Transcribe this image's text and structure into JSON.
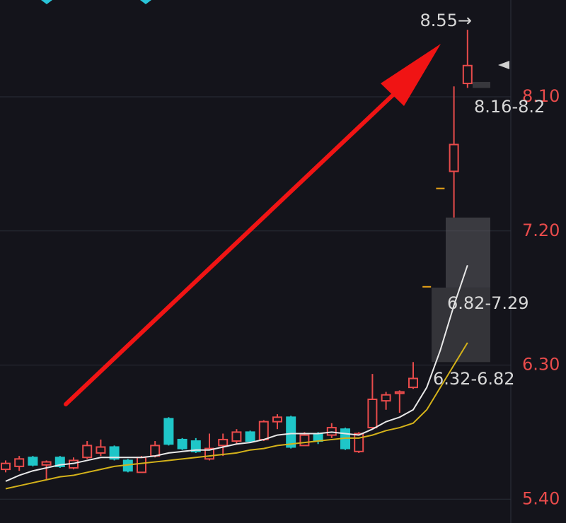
{
  "chart_data": {
    "type": "candlestick",
    "ylim": [
      5.24,
      8.75
    ],
    "yticks": [
      {
        "value": 5.4,
        "label": "5.40"
      },
      {
        "value": 6.3,
        "label": "6.30"
      },
      {
        "value": 7.2,
        "label": "7.20"
      },
      {
        "value": 8.1,
        "label": "8.10"
      }
    ],
    "grid": true,
    "up_color": "#e84b4b",
    "down_color": "#1fc6c8",
    "flat_color": "#e8a317",
    "candles": {
      "open": [
        5.6,
        5.62,
        5.68,
        5.63,
        5.68,
        5.61,
        5.68,
        5.71,
        5.75,
        5.66,
        5.58,
        5.69,
        5.94,
        5.8,
        5.79,
        5.67,
        5.76,
        5.79,
        5.85,
        5.8,
        5.92,
        5.95,
        5.76,
        5.84,
        5.83,
        5.87,
        5.72,
        5.88,
        6.06,
        6.11,
        6.15,
        6.83,
        7.49,
        7.6,
        8.19
      ],
      "close": [
        5.64,
        5.67,
        5.63,
        5.65,
        5.62,
        5.66,
        5.76,
        5.75,
        5.67,
        5.59,
        5.68,
        5.76,
        5.77,
        5.74,
        5.72,
        5.74,
        5.8,
        5.85,
        5.79,
        5.92,
        5.95,
        5.75,
        5.83,
        5.79,
        5.88,
        5.74,
        5.84,
        6.07,
        6.1,
        6.12,
        6.21,
        6.83,
        7.49,
        7.78,
        8.31
      ],
      "high": [
        5.66,
        5.69,
        5.69,
        5.66,
        5.69,
        5.68,
        5.79,
        5.8,
        5.76,
        5.67,
        5.69,
        5.79,
        5.95,
        5.81,
        5.81,
        5.84,
        5.84,
        5.87,
        5.86,
        5.93,
        5.97,
        5.96,
        5.85,
        5.85,
        5.91,
        5.88,
        5.85,
        6.24,
        6.12,
        6.13,
        6.32,
        6.83,
        7.49,
        8.17,
        8.55
      ],
      "low": [
        5.58,
        5.59,
        5.62,
        5.53,
        5.61,
        5.6,
        5.67,
        5.69,
        5.66,
        5.58,
        5.58,
        5.68,
        5.76,
        5.73,
        5.71,
        5.66,
        5.69,
        5.77,
        5.78,
        5.79,
        5.87,
        5.74,
        5.76,
        5.77,
        5.81,
        5.73,
        5.71,
        5.87,
        6.0,
        5.98,
        6.14,
        6.83,
        7.49,
        7.29,
        8.16
      ]
    },
    "lines": [
      {
        "color": "#e8e8e8",
        "values": [
          5.52,
          5.56,
          5.59,
          5.61,
          5.63,
          5.64,
          5.66,
          5.68,
          5.68,
          5.68,
          5.68,
          5.69,
          5.71,
          5.72,
          5.73,
          5.73,
          5.75,
          5.77,
          5.78,
          5.8,
          5.83,
          5.84,
          5.84,
          5.84,
          5.85,
          5.84,
          5.83,
          5.87,
          5.92,
          5.95,
          6.0,
          6.15,
          6.4,
          6.7,
          6.97
        ]
      },
      {
        "color": "#d4b21a",
        "values": [
          5.47,
          5.49,
          5.51,
          5.53,
          5.55,
          5.56,
          5.58,
          5.6,
          5.62,
          5.63,
          5.64,
          5.65,
          5.66,
          5.67,
          5.68,
          5.69,
          5.7,
          5.71,
          5.73,
          5.74,
          5.76,
          5.77,
          5.78,
          5.79,
          5.8,
          5.81,
          5.81,
          5.83,
          5.86,
          5.88,
          5.91,
          6.0,
          6.15,
          6.3,
          6.45
        ]
      }
    ],
    "zones": [
      {
        "low": 6.82,
        "high": 7.29,
        "label": "6.82-7.29"
      },
      {
        "low": 6.32,
        "high": 6.82,
        "label": "6.32-6.82"
      },
      {
        "low": 8.16,
        "high": 8.2,
        "label": "8.16-8.2"
      }
    ],
    "annotations": [
      {
        "text": "8.55→",
        "value": 8.55
      }
    ]
  }
}
